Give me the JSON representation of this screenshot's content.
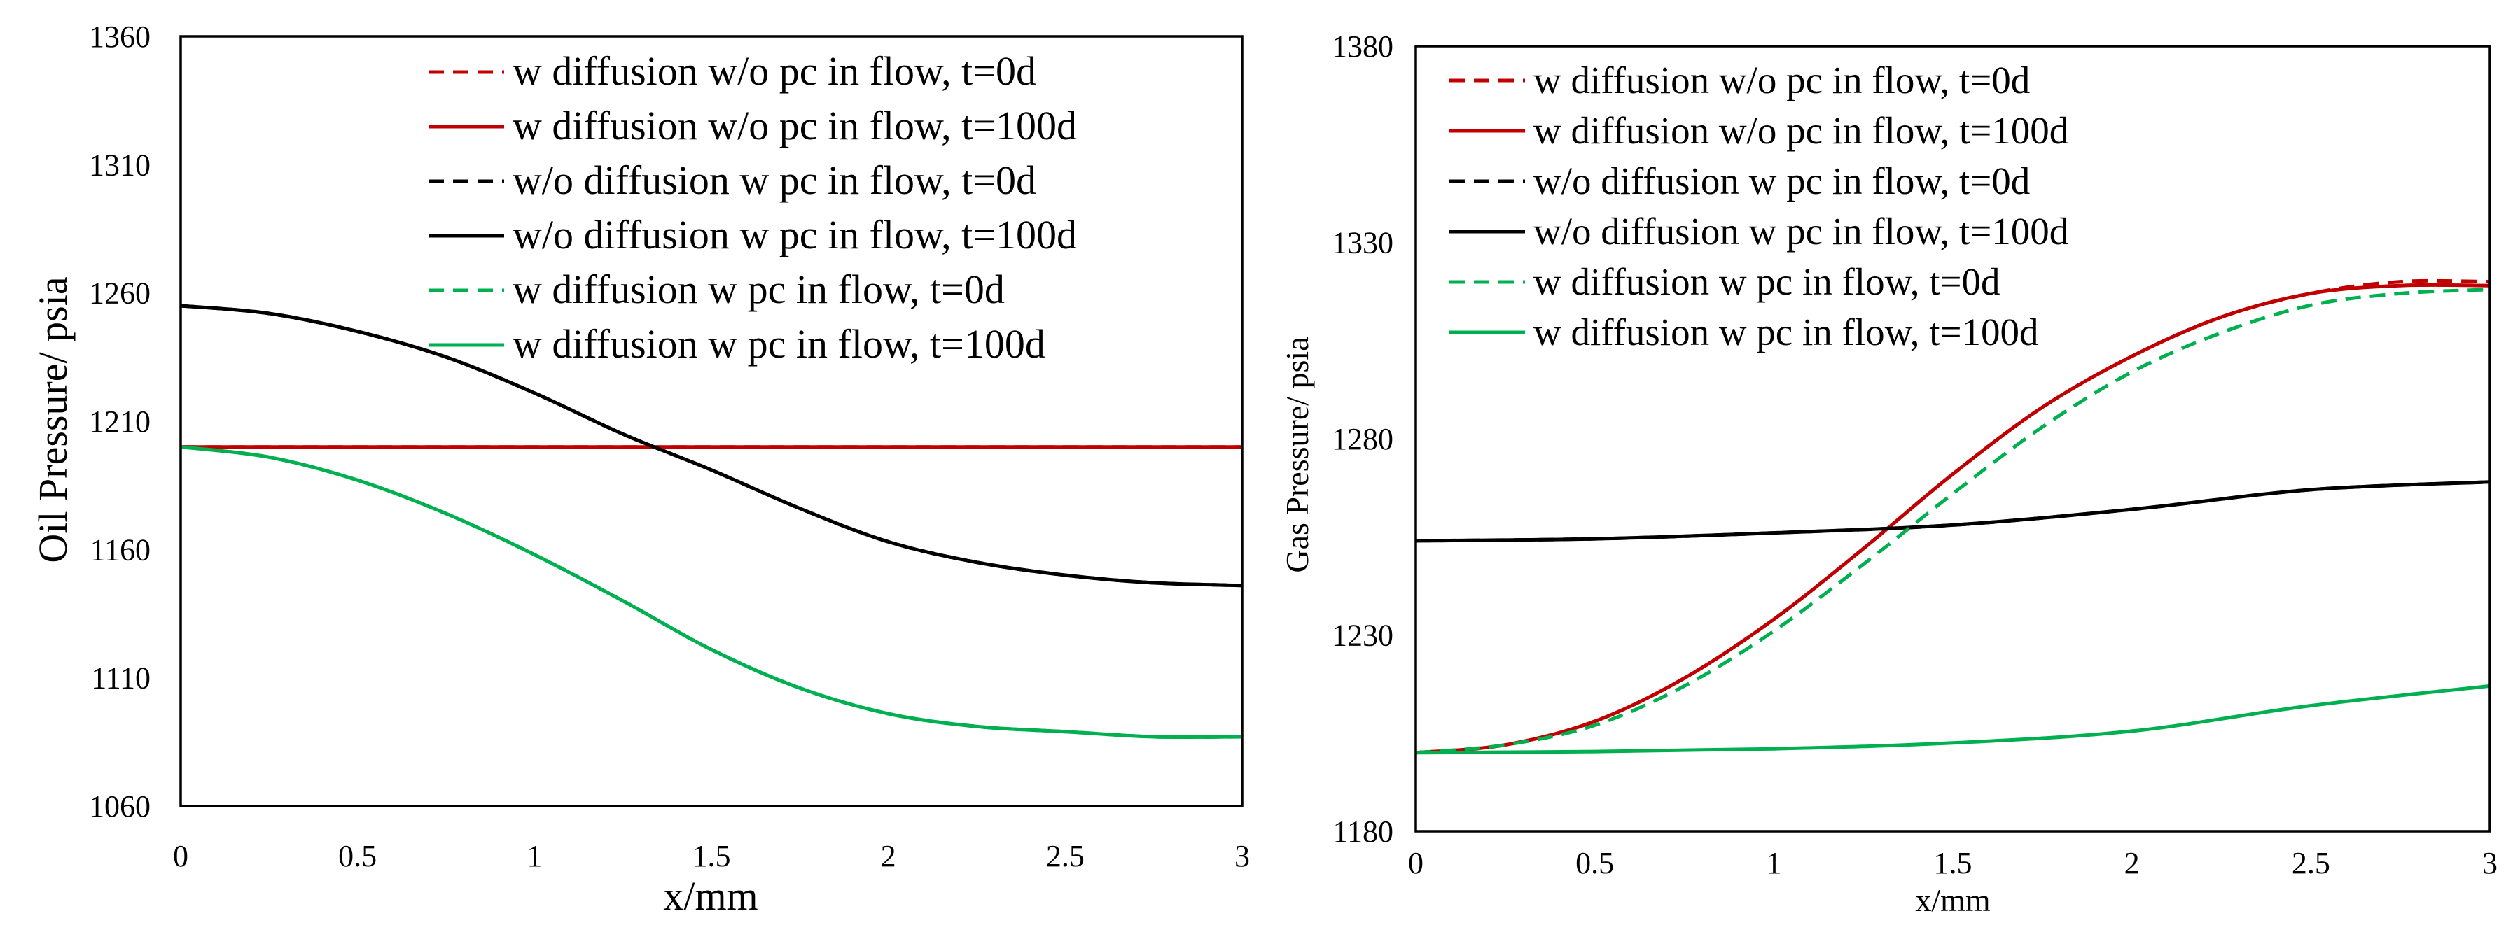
{
  "chart_data": [
    {
      "type": "line",
      "title": "",
      "xlabel": "x/mm",
      "ylabel": "Oil Pressure/ psia",
      "xlim": [
        0,
        3
      ],
      "ylim": [
        1060,
        1360
      ],
      "xticks": [
        "0",
        "0.5",
        "1",
        "1.5",
        "2",
        "2.5",
        "3"
      ],
      "yticks": [
        "1060",
        "1110",
        "1160",
        "1210",
        "1260",
        "1310",
        "1360"
      ],
      "legend_position": "top-right",
      "series": [
        {
          "name": "w diffusion w/o pc in flow, t=0d",
          "color": "#c00000",
          "style": "dashed",
          "x": [
            0,
            3
          ],
          "y": [
            1200,
            1200
          ]
        },
        {
          "name": "w diffusion w/o pc in flow, t=100d",
          "color": "#c00000",
          "style": "solid",
          "x": [
            0,
            3
          ],
          "y": [
            1200,
            1200
          ]
        },
        {
          "name": "w/o diffusion w pc in flow, t=0d",
          "color": "#000000",
          "style": "dashed",
          "x": [
            0,
            0.25,
            0.5,
            0.75,
            1,
            1.25,
            1.5,
            1.75,
            2,
            2.25,
            2.5,
            2.75,
            3
          ],
          "y": [
            1255,
            1252,
            1245,
            1235,
            1221,
            1205,
            1191,
            1176,
            1163,
            1155,
            1150,
            1147,
            1146
          ]
        },
        {
          "name": "w/o diffusion w pc in flow, t=100d",
          "color": "#000000",
          "style": "solid",
          "x": [
            0,
            0.25,
            0.5,
            0.75,
            1,
            1.25,
            1.5,
            1.75,
            2,
            2.25,
            2.5,
            2.75,
            3
          ],
          "y": [
            1255,
            1252,
            1245,
            1235,
            1221,
            1205,
            1191,
            1176,
            1163,
            1155,
            1150,
            1147,
            1146
          ]
        },
        {
          "name": "w diffusion w pc in flow, t=0d",
          "color": "#00b050",
          "style": "dashed",
          "x": [
            0,
            0.25,
            0.5,
            0.75,
            1,
            1.25,
            1.5,
            1.75,
            2,
            2.25,
            2.5,
            2.75,
            3
          ],
          "y": [
            1200,
            1196,
            1187,
            1174,
            1158,
            1140,
            1121,
            1106,
            1096,
            1091,
            1089,
            1087,
            1087
          ]
        },
        {
          "name": "w diffusion w pc in flow, t=100d",
          "color": "#00b050",
          "style": "solid",
          "x": [
            0,
            0.25,
            0.5,
            0.75,
            1,
            1.25,
            1.5,
            1.75,
            2,
            2.25,
            2.5,
            2.75,
            3
          ],
          "y": [
            1200,
            1196,
            1187,
            1174,
            1158,
            1140,
            1121,
            1106,
            1096,
            1091,
            1089,
            1087,
            1087
          ]
        }
      ]
    },
    {
      "type": "line",
      "title": "",
      "xlabel": "x/mm",
      "ylabel": "Gas Pressure/ psia",
      "xlim": [
        0,
        3
      ],
      "ylim": [
        1180,
        1380
      ],
      "xticks": [
        "0",
        "0.5",
        "1",
        "1.5",
        "2",
        "2.5",
        "3"
      ],
      "yticks": [
        "1180",
        "1230",
        "1280",
        "1330",
        "1380"
      ],
      "legend_position": "top-left",
      "series": [
        {
          "name": "w diffusion w/o pc in flow, t=0d",
          "color": "#c00000",
          "style": "dashed",
          "x": [
            0,
            0.25,
            0.5,
            0.75,
            1,
            1.25,
            1.5,
            1.75,
            2,
            2.25,
            2.5,
            2.75,
            3
          ],
          "y": [
            1200,
            1202,
            1208,
            1219,
            1234,
            1252,
            1271,
            1288,
            1301,
            1311,
            1317,
            1320,
            1320
          ]
        },
        {
          "name": "w diffusion w/o pc in flow, t=100d",
          "color": "#c00000",
          "style": "solid",
          "x": [
            0,
            0.25,
            0.5,
            0.75,
            1,
            1.25,
            1.5,
            1.75,
            2,
            2.25,
            2.5,
            2.75,
            3
          ],
          "y": [
            1200,
            1202,
            1208,
            1219,
            1234,
            1252,
            1271,
            1288,
            1301,
            1311,
            1317,
            1319,
            1319
          ]
        },
        {
          "name": "w/o diffusion w pc in flow, t=0d",
          "color": "#000000",
          "style": "dashed",
          "x": [
            0,
            0.5,
            1,
            1.5,
            2,
            2.5,
            3
          ],
          "y": [
            1254,
            1254.5,
            1256,
            1258,
            1262,
            1267,
            1269
          ]
        },
        {
          "name": "w/o diffusion w pc in flow, t=100d",
          "color": "#000000",
          "style": "solid",
          "x": [
            0,
            0.5,
            1,
            1.5,
            2,
            2.5,
            3
          ],
          "y": [
            1254,
            1254.5,
            1256,
            1258,
            1262,
            1267,
            1269
          ]
        },
        {
          "name": "w diffusion w pc in flow, t=0d",
          "color": "#00b050",
          "style": "dashed",
          "x": [
            0,
            0.25,
            0.5,
            0.75,
            1,
            1.25,
            1.5,
            1.75,
            2,
            2.25,
            2.5,
            2.75,
            3
          ],
          "y": [
            1200,
            1202,
            1207,
            1217,
            1231,
            1248,
            1266,
            1283,
            1297,
            1307,
            1314,
            1317,
            1318
          ]
        },
        {
          "name": "w diffusion w pc in flow, t=100d",
          "color": "#00b050",
          "style": "solid",
          "x": [
            0,
            0.5,
            1,
            1.5,
            2,
            2.5,
            3
          ],
          "y": [
            1200,
            1200.3,
            1201,
            1202.5,
            1205.5,
            1212,
            1217
          ]
        }
      ]
    }
  ]
}
